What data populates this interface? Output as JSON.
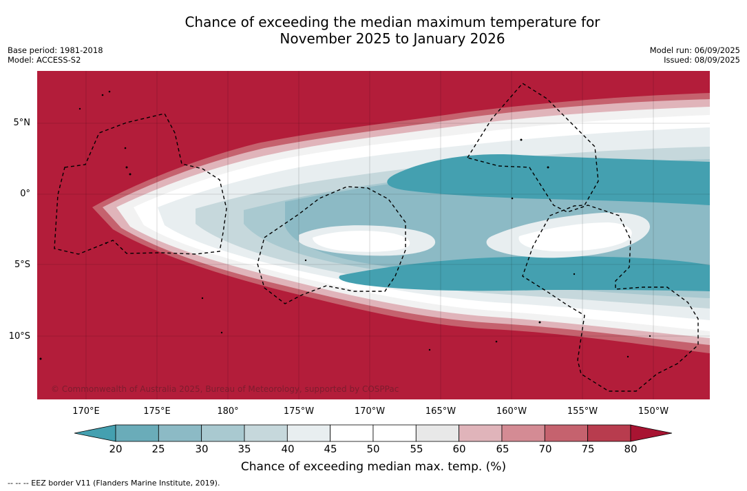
{
  "title": {
    "line1": "Chance of exceeding the median maximum temperature for",
    "line2": "November 2025 to January 2026"
  },
  "meta": {
    "base_period": "Base period: 1981-2018",
    "model": "Model: ACCESS-S2",
    "model_run": "Model run: 06/09/2025",
    "issued": "Issued: 08/09/2025"
  },
  "map": {
    "lat_labels": [
      "5°N",
      "0°",
      "5°S",
      "10°S"
    ],
    "lon_labels": [
      "170°E",
      "175°E",
      "180°",
      "175°W",
      "170°W",
      "165°W",
      "160°W",
      "155°W",
      "150°W"
    ],
    "copyright": "© Commonwealth of Australia 2025, Bureau of Meteorology, supported by COSPPac",
    "background_color": "#b31d3a"
  },
  "colorbar": {
    "ticks": [
      "20",
      "25",
      "30",
      "35",
      "40",
      "45",
      "50",
      "55",
      "60",
      "65",
      "70",
      "75",
      "80"
    ],
    "colors": [
      "#44a0b0",
      "#6aacb9",
      "#8cbac5",
      "#a9c9d0",
      "#c6d8dc",
      "#e8eef0",
      "#ffffff",
      "#ffffff",
      "#e8e8e8",
      "#e0b4ba",
      "#d48b94",
      "#c5626e",
      "#b83c4e",
      "#a81432"
    ],
    "label": "Chance of exceeding median max. temp. (%)"
  },
  "footnote": "--  --  -- EEZ border V11 (Flanders Marine Institute, 2019)."
}
